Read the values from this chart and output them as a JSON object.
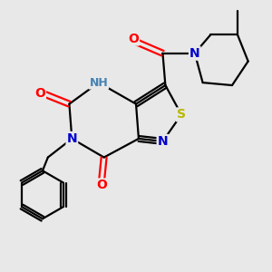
{
  "bg_color": "#e8e8e8",
  "atom_colors": {
    "C": "#000000",
    "N": "#0000cd",
    "O": "#ff0000",
    "S": "#b8b800",
    "H": "#4682b4",
    "NH": "#4682b4"
  },
  "bond_color": "#000000",
  "bond_width": 1.6,
  "fig_bg": "#e8e8e8"
}
